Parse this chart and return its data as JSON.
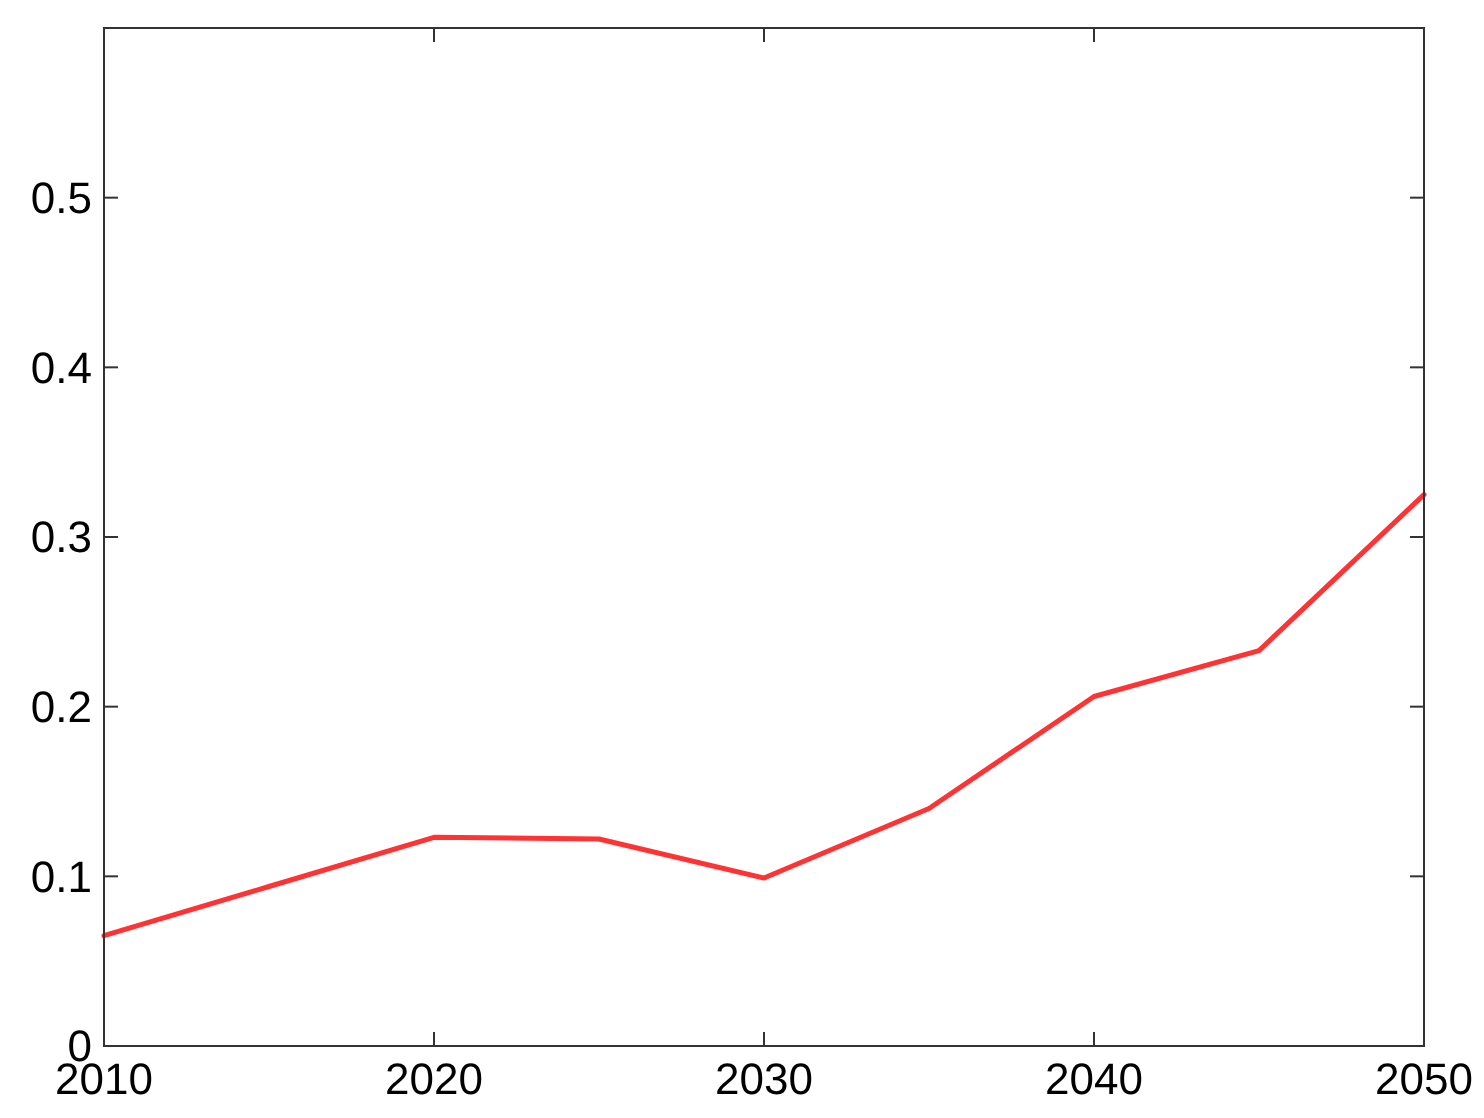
{
  "chart_data": {
    "type": "line",
    "x": [
      2010,
      2015,
      2020,
      2025,
      2030,
      2035,
      2040,
      2045,
      2050
    ],
    "series": [
      {
        "color": "#ff3333",
        "values": [
          0.065,
          0.094,
          0.123,
          0.122,
          0.099,
          0.14,
          0.206,
          0.233,
          0.325
        ]
      }
    ],
    "xlim": [
      2010,
      2050
    ],
    "xticks": [
      2010,
      2020,
      2030,
      2040,
      2050
    ],
    "ylim": [
      0,
      0.6
    ],
    "yticks": [
      0,
      0.1,
      0.2,
      0.3,
      0.4,
      0.5
    ],
    "grid": false,
    "marker": "none",
    "line_style": "solid"
  }
}
